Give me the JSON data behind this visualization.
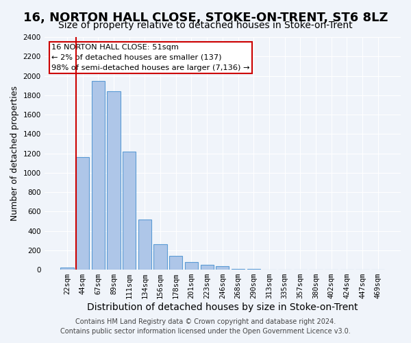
{
  "title": "16, NORTON HALL CLOSE, STOKE-ON-TRENT, ST6 8LZ",
  "subtitle": "Size of property relative to detached houses in Stoke-on-Trent",
  "xlabel": "Distribution of detached houses by size in Stoke-on-Trent",
  "ylabel": "Number of detached properties",
  "bar_labels": [
    "22sqm",
    "44sqm",
    "67sqm",
    "89sqm",
    "111sqm",
    "134sqm",
    "156sqm",
    "178sqm",
    "201sqm",
    "223sqm",
    "246sqm",
    "268sqm",
    "290sqm",
    "313sqm",
    "335sqm",
    "357sqm",
    "380sqm",
    "402sqm",
    "424sqm",
    "447sqm",
    "469sqm"
  ],
  "bar_values": [
    25,
    1160,
    1950,
    1840,
    1220,
    520,
    265,
    145,
    75,
    48,
    35,
    5,
    8,
    3,
    2,
    1,
    1,
    0,
    0,
    0,
    0
  ],
  "bar_color": "#aec6e8",
  "bar_edge_color": "#5b9bd5",
  "vline_x": 1,
  "vline_color": "#cc0000",
  "ylim": [
    0,
    2400
  ],
  "yticks": [
    0,
    200,
    400,
    600,
    800,
    1000,
    1200,
    1400,
    1600,
    1800,
    2000,
    2200,
    2400
  ],
  "annotation_title": "16 NORTON HALL CLOSE: 51sqm",
  "annotation_line1": "← 2% of detached houses are smaller (137)",
  "annotation_line2": "98% of semi-detached houses are larger (7,136) →",
  "annotation_box_color": "#ffffff",
  "annotation_box_edge": "#cc0000",
  "footer_line1": "Contains HM Land Registry data © Crown copyright and database right 2024.",
  "footer_line2": "Contains public sector information licensed under the Open Government Licence v3.0.",
  "bg_color": "#f0f4fa",
  "plot_bg_color": "#f0f4fa",
  "title_fontsize": 13,
  "subtitle_fontsize": 10,
  "xlabel_fontsize": 10,
  "ylabel_fontsize": 9,
  "tick_fontsize": 7.5,
  "footer_fontsize": 7
}
